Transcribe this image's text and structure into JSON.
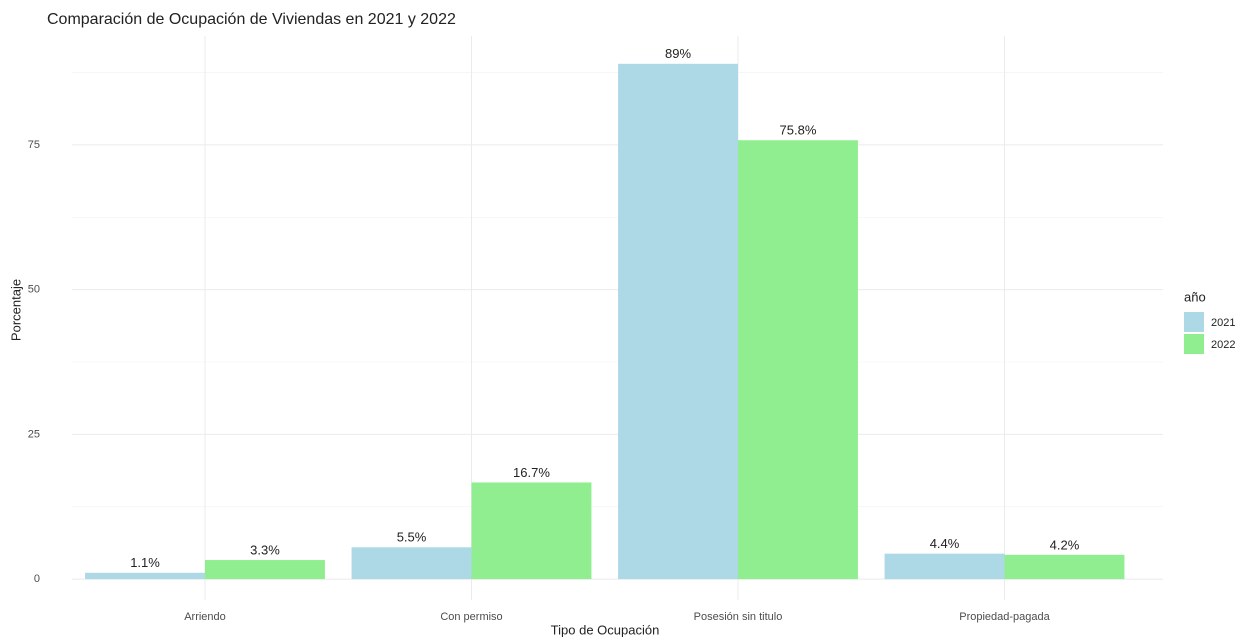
{
  "chart_data": {
    "type": "bar",
    "title": "Comparación de Ocupación de Viviendas en 2021 y 2022",
    "x_label": "Tipo de Ocupación",
    "y_label": "Porcentaje",
    "legend_title": "año",
    "legend_position": "right",
    "categories": [
      "Arriendo",
      "Con permiso",
      "Posesión sin titulo",
      "Propiedad-pagada"
    ],
    "series": [
      {
        "name": "2021",
        "color": "#add8e6",
        "values": [
          1.1,
          5.5,
          89,
          4.4
        ],
        "value_labels": [
          "1.1%",
          "5.5%",
          "89%",
          "4.4%"
        ]
      },
      {
        "name": "2022",
        "color": "#90ee90",
        "values": [
          3.3,
          16.7,
          75.8,
          4.2
        ],
        "value_labels": [
          "3.3%",
          "16.7%",
          "75.8%",
          "4.2%"
        ]
      }
    ],
    "ylim": [
      -3.6,
      93.8
    ],
    "yticks": [
      0,
      25,
      50,
      75
    ],
    "minor_yticks": [
      12.5,
      37.5,
      62.5,
      87.5
    ],
    "grid": true
  }
}
